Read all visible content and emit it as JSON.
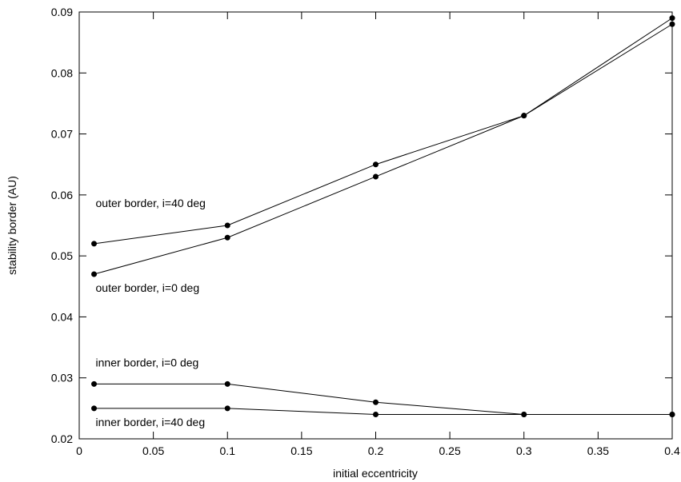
{
  "chart_data": {
    "type": "line",
    "title": "",
    "xlabel": "initial eccentricity",
    "ylabel": "stability border (AU)",
    "xlim": [
      0,
      0.4
    ],
    "ylim": [
      0.02,
      0.09
    ],
    "grid": false,
    "x_ticks": [
      "0",
      "0.05",
      "0.1",
      "0.15",
      "0.2",
      "0.25",
      "0.3",
      "0.35",
      "0.4"
    ],
    "y_ticks": [
      "0.02",
      "0.03",
      "0.04",
      "0.05",
      "0.06",
      "0.07",
      "0.08",
      "0.09"
    ],
    "series": [
      {
        "label": "outer border, i=40 deg",
        "x": [
          0.01,
          0.1,
          0.2,
          0.3,
          0.4
        ],
        "y": [
          0.052,
          0.055,
          0.065,
          0.073,
          0.089
        ]
      },
      {
        "label": "outer border, i=0 deg",
        "x": [
          0.01,
          0.1,
          0.2,
          0.3,
          0.4
        ],
        "y": [
          0.047,
          0.053,
          0.063,
          0.073,
          0.088
        ]
      },
      {
        "label": "inner border, i=0 deg",
        "x": [
          0.01,
          0.1,
          0.2,
          0.3,
          0.4
        ],
        "y": [
          0.029,
          0.029,
          0.026,
          0.024,
          0.024
        ]
      },
      {
        "label": "inner border, i=40 deg",
        "x": [
          0.01,
          0.1,
          0.2,
          0.3,
          0.4
        ],
        "y": [
          0.025,
          0.025,
          0.024,
          0.024,
          0.024
        ]
      }
    ]
  }
}
